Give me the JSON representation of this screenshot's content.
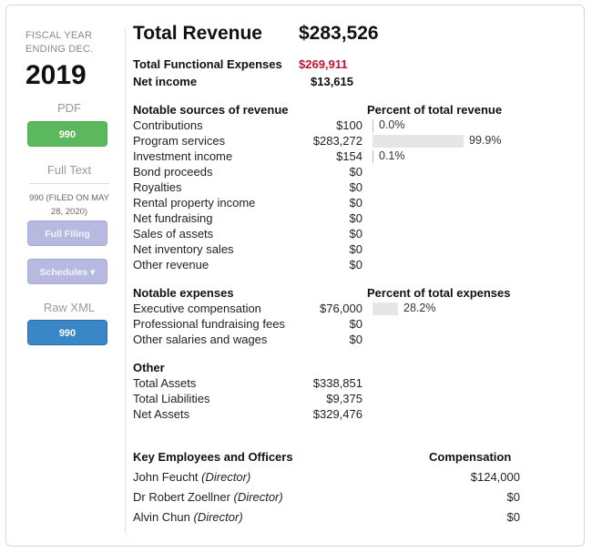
{
  "sidebar": {
    "fiscal_label": "FISCAL YEAR ENDING DEC.",
    "year": "2019",
    "pdf_label": "PDF",
    "pdf_button": "990",
    "fulltext_label": "Full Text",
    "filed_note": "990 (FILED ON MAY 28, 2020)",
    "full_filing_button": "Full Filing",
    "schedules_button": "Schedules ▾",
    "rawxml_label": "Raw XML",
    "rawxml_button": "990"
  },
  "summary": {
    "total_revenue_label": "Total Revenue",
    "total_revenue_value": "$283,526",
    "expenses_label": "Total Functional Expenses",
    "expenses_value": "$269,911",
    "net_income_label": "Net income",
    "net_income_value": "$13,615"
  },
  "revenue": {
    "heading": "Notable sources of revenue",
    "pct_heading": "Percent of total revenue",
    "rows": [
      {
        "label": "Contributions",
        "value": "$100",
        "pct": "0.0%",
        "fraction": 0.0
      },
      {
        "label": "Program services",
        "value": "$283,272",
        "pct": "99.9%",
        "fraction": 0.999
      },
      {
        "label": "Investment income",
        "value": "$154",
        "pct": "0.1%",
        "fraction": 0.001
      },
      {
        "label": "Bond proceeds",
        "value": "$0"
      },
      {
        "label": "Royalties",
        "value": "$0"
      },
      {
        "label": "Rental property income",
        "value": "$0"
      },
      {
        "label": "Net fundraising",
        "value": "$0"
      },
      {
        "label": "Sales of assets",
        "value": "$0"
      },
      {
        "label": "Net inventory sales",
        "value": "$0"
      },
      {
        "label": "Other revenue",
        "value": "$0"
      }
    ]
  },
  "expenses": {
    "heading": "Notable expenses",
    "pct_heading": "Percent of total expenses",
    "rows": [
      {
        "label": "Executive compensation",
        "value": "$76,000",
        "pct": "28.2%",
        "fraction": 0.282
      },
      {
        "label": "Professional fundraising fees",
        "value": "$0"
      },
      {
        "label": "Other salaries and wages",
        "value": "$0"
      }
    ]
  },
  "other": {
    "heading": "Other",
    "rows": [
      {
        "label": "Total Assets",
        "value": "$338,851"
      },
      {
        "label": "Total Liabilities",
        "value": "$9,375"
      },
      {
        "label": "Net Assets",
        "value": "$329,476"
      }
    ]
  },
  "employees": {
    "heading": "Key Employees and Officers",
    "comp_heading": "Compensation",
    "rows": [
      {
        "name": "John Feucht",
        "role": "(Director)",
        "comp": "$124,000"
      },
      {
        "name": "Dr Robert Zoellner",
        "role": "(Director)",
        "comp": "$0"
      },
      {
        "name": "Alvin Chun",
        "role": "(Director)",
        "comp": "$0"
      }
    ]
  },
  "colors": {
    "green_button": "#5cb85c",
    "blue_button": "#3a87c8",
    "lavender_button": "#b7b9e0",
    "negative_red": "#c8102e"
  }
}
